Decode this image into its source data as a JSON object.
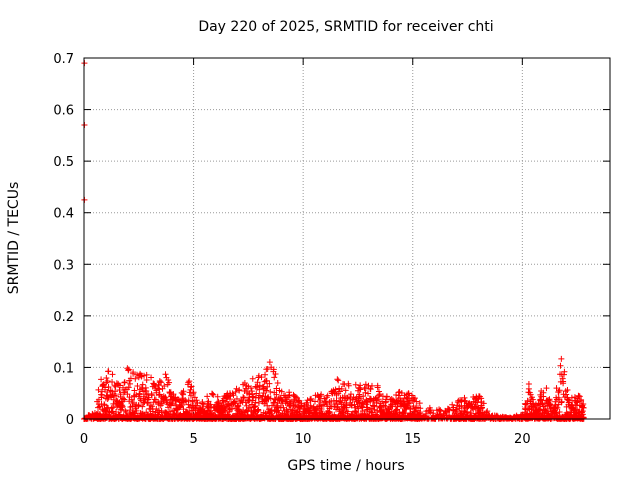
{
  "chart_data": {
    "type": "scatter",
    "title": "Day 220 of 2025, SRMTID for receiver chti",
    "xlabel": "GPS time / hours",
    "ylabel": "SRMTID / TECUs",
    "xlim": [
      0,
      24
    ],
    "ylim": [
      0,
      0.7
    ],
    "xticks": [
      0,
      5,
      10,
      15,
      20
    ],
    "yticks": [
      0,
      0.1,
      0.2,
      0.3,
      0.4,
      0.5,
      0.6,
      0.7
    ],
    "ytick_labels": [
      "0",
      "0.1",
      "0.2",
      "0.3",
      "0.4",
      "0.5",
      "0.6",
      "0.7"
    ],
    "grid": true,
    "marker": "+",
    "color": "#ff0000",
    "series": [
      {
        "name": "SRMTID",
        "outliers": [
          [
            0.02,
            0.69
          ],
          [
            0.02,
            0.57
          ],
          [
            0.02,
            0.425
          ]
        ],
        "envelope": [
          [
            0.0,
            0.0
          ],
          [
            0.5,
            0.02
          ],
          [
            0.8,
            0.09
          ],
          [
            1.2,
            0.1
          ],
          [
            1.6,
            0.07
          ],
          [
            2.0,
            0.1
          ],
          [
            2.5,
            0.09
          ],
          [
            3.0,
            0.085
          ],
          [
            3.4,
            0.07
          ],
          [
            3.8,
            0.095
          ],
          [
            4.2,
            0.04
          ],
          [
            4.8,
            0.075
          ],
          [
            5.2,
            0.03
          ],
          [
            5.8,
            0.05
          ],
          [
            6.3,
            0.045
          ],
          [
            6.8,
            0.06
          ],
          [
            7.2,
            0.065
          ],
          [
            7.6,
            0.08
          ],
          [
            8.0,
            0.085
          ],
          [
            8.5,
            0.125
          ],
          [
            9.0,
            0.06
          ],
          [
            9.5,
            0.06
          ],
          [
            10.0,
            0.03
          ],
          [
            10.6,
            0.05
          ],
          [
            11.0,
            0.05
          ],
          [
            11.6,
            0.085
          ],
          [
            12.0,
            0.07
          ],
          [
            12.4,
            0.075
          ],
          [
            13.0,
            0.065
          ],
          [
            13.5,
            0.065
          ],
          [
            14.0,
            0.04
          ],
          [
            14.5,
            0.06
          ],
          [
            15.0,
            0.045
          ],
          [
            15.5,
            0.025
          ],
          [
            16.0,
            0.02
          ],
          [
            16.5,
            0.02
          ],
          [
            17.0,
            0.035
          ],
          [
            17.5,
            0.045
          ],
          [
            18.0,
            0.05
          ],
          [
            18.5,
            0.01
          ],
          [
            19.0,
            0.005
          ],
          [
            19.5,
            0.005
          ],
          [
            20.0,
            0.01
          ],
          [
            20.3,
            0.07
          ],
          [
            20.6,
            0.03
          ],
          [
            21.0,
            0.075
          ],
          [
            21.4,
            0.02
          ],
          [
            21.8,
            0.125
          ],
          [
            22.1,
            0.05
          ],
          [
            22.5,
            0.05
          ],
          [
            22.8,
            0.035
          ]
        ]
      }
    ]
  }
}
